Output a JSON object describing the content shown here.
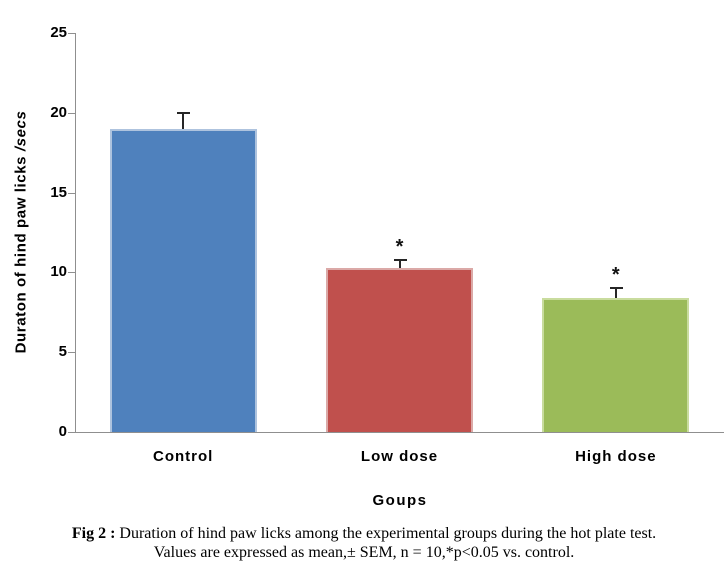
{
  "caption": {
    "prefix": "Fig 2 :",
    "line1": " Duration of hind paw licks among the experimental groups during the hot plate test.",
    "line2": "Values are expressed as mean,± SEM, n = 10,*p<0.05 vs. control."
  },
  "chart_data": {
    "type": "bar",
    "categories": [
      "Control",
      "Low dose",
      "High dose"
    ],
    "values": [
      19.0,
      10.3,
      8.4
    ],
    "sem": [
      1.0,
      0.5,
      0.6
    ],
    "significance": [
      "",
      "*",
      "*"
    ],
    "title": "",
    "xlabel": "Goups",
    "ylabel": "Duraton of hind paw licks /secs",
    "ylabel_main": "Duraton of hind paw licks ",
    "ylabel_suffix": "/secs",
    "ylim": [
      0,
      25
    ],
    "yticks": [
      0,
      5,
      10,
      15,
      20,
      25
    ],
    "grid": false,
    "legend": "none",
    "bar_colors": [
      "#4f81bd",
      "#c0504d",
      "#9bbb59"
    ],
    "bar_edge_colors": [
      "#aec3de",
      "#dba9a7",
      "#c9dc9e"
    ],
    "axis_color": "#8f8f8f",
    "error_bar_color": "#262626",
    "text_color": "#000000"
  }
}
